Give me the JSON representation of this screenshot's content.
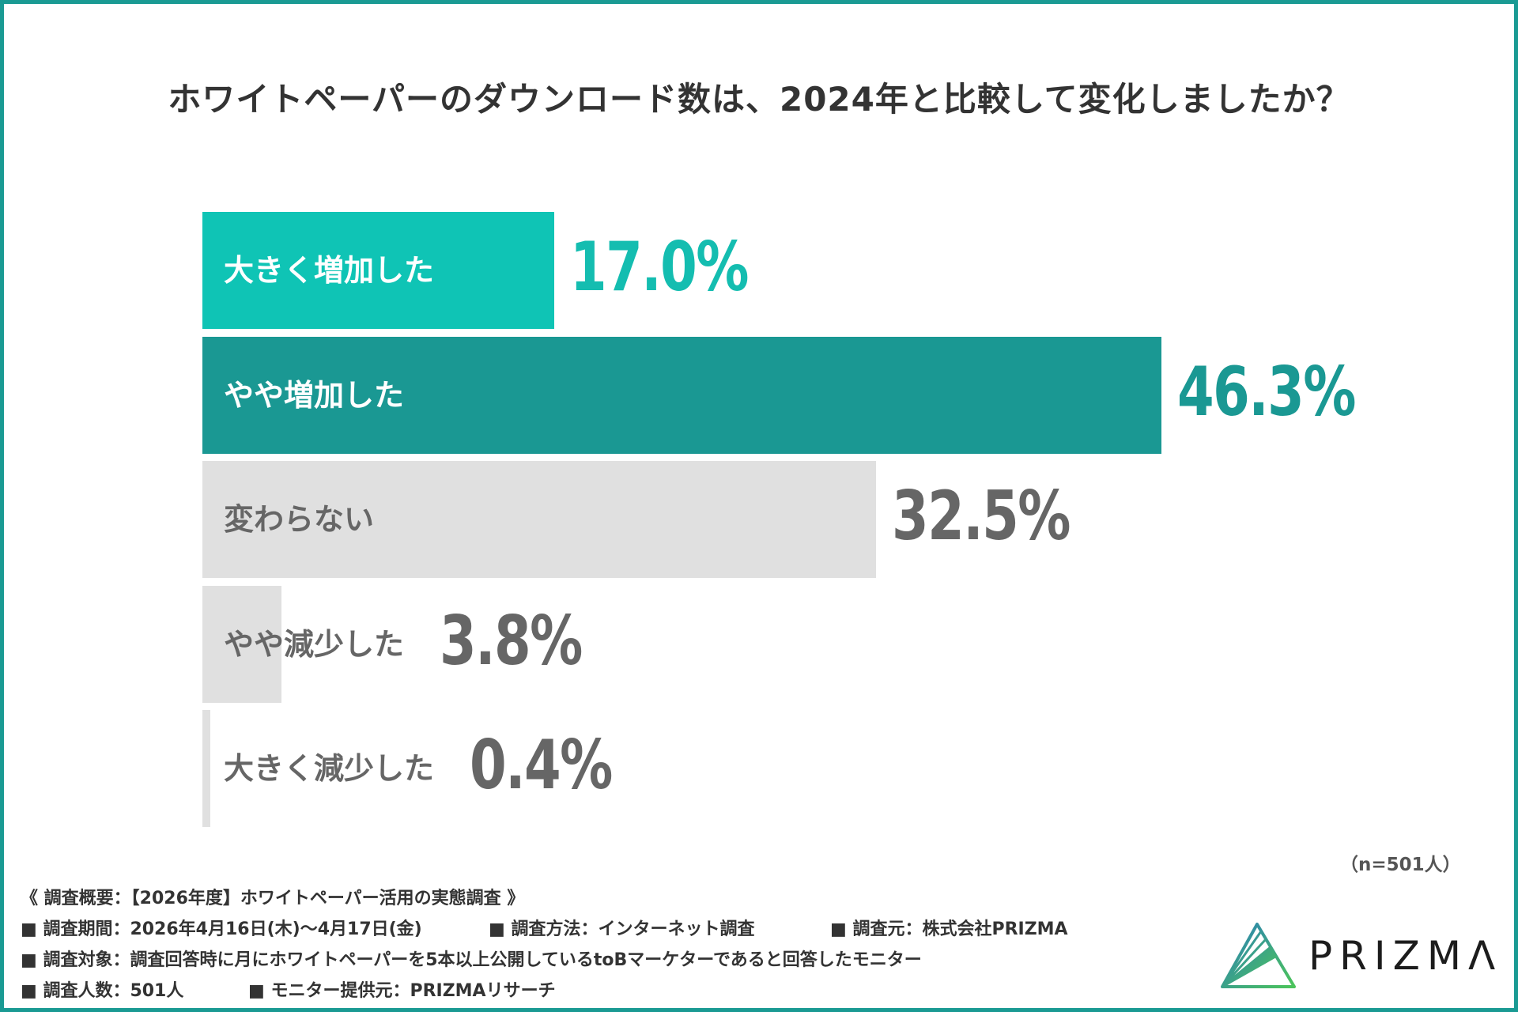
{
  "chart_data": {
    "type": "bar",
    "orientation": "horizontal",
    "title": "ホワイトペーパーのダウンロード数は、2024年と比較して変化しましたか？",
    "categories": [
      "大きく増加した",
      "やや増加した",
      "変わらない",
      "やや減少した",
      "大きく減少した"
    ],
    "values": [
      17.0,
      46.3,
      32.5,
      3.8,
      0.4
    ],
    "value_labels": [
      "17.0%",
      "46.3%",
      "32.5%",
      "3.8%",
      "0.4%"
    ],
    "unit": "%",
    "colors": [
      "#0fc4b5",
      "#1a9893",
      "#e0e0e0",
      "#e0e0e0",
      "#e0e0e0"
    ],
    "label_colors": [
      "#ffffff",
      "#ffffff",
      "#666666",
      "#666666",
      "#666666"
    ],
    "value_colors": [
      "#14bdb0",
      "#1a9893",
      "#666666",
      "#666666",
      "#666666"
    ],
    "grid": false,
    "sample_note": "（n=501人）"
  },
  "footer": {
    "heading": "《 調査概要：【2026年度】ホワイトペーパー活用の実態調査 》",
    "period": "■ 調査期間：2026年4月16日(木)〜4月17日(金)",
    "method": "■ 調査方法：インターネット調査",
    "source": "■ 調査元：株式会社PRIZMA",
    "target": "■ 調査対象：調査回答時に月にホワイトペーパーを5本以上公開しているtoBマーケターであると回答したモニター",
    "count": "■ 調査人数：501人",
    "provider": "■ モニター提供元：PRIZMAリサーチ"
  },
  "logo": {
    "text": "PRIZMΛ"
  }
}
